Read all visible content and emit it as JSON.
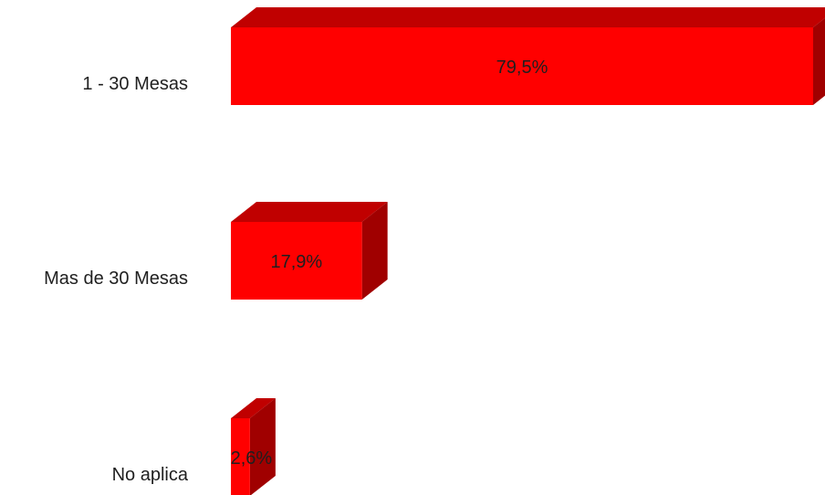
{
  "chart_data": {
    "type": "bar",
    "orientation": "horizontal",
    "style": "3d",
    "categories": [
      "1 - 30 Mesas",
      "Mas de 30 Mesas",
      "No aplica"
    ],
    "values": [
      79.5,
      17.9,
      2.6
    ],
    "value_labels": [
      "79,5%",
      "17,9%",
      "2,6%"
    ],
    "unit": "%",
    "xlim": [
      0,
      79.5
    ],
    "grid": false,
    "legend": "none",
    "colors": {
      "front": "#ff0000",
      "top": "#c00000",
      "side": "#a00000"
    }
  }
}
